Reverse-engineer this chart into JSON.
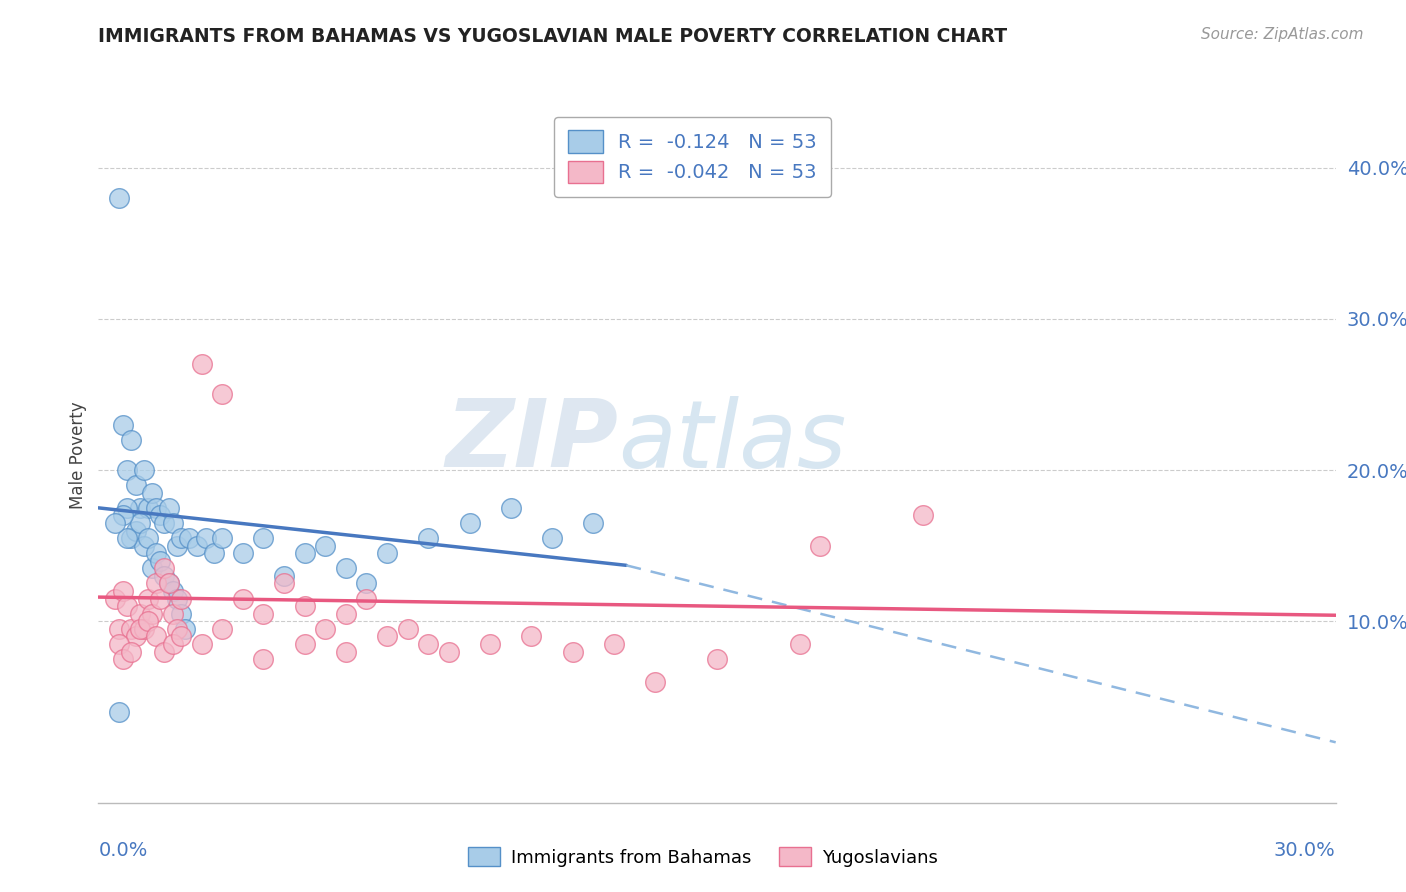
{
  "title": "IMMIGRANTS FROM BAHAMAS VS YUGOSLAVIAN MALE POVERTY CORRELATION CHART",
  "source": "Source: ZipAtlas.com",
  "ylabel": "Male Poverty",
  "y_ticks": [
    0.1,
    0.2,
    0.3,
    0.4
  ],
  "y_tick_labels": [
    "10.0%",
    "20.0%",
    "30.0%",
    "40.0%"
  ],
  "xlim": [
    0.0,
    0.3
  ],
  "ylim": [
    -0.02,
    0.44
  ],
  "legend_r1": "R =  -0.124   N = 53",
  "legend_r2": "R =  -0.042   N = 53",
  "legend_label1": "Immigrants from Bahamas",
  "legend_label2": "Yugoslavians",
  "color_blue": "#a8cce8",
  "color_pink": "#f4b8c8",
  "color_blue_dark": "#5590c8",
  "color_pink_dark": "#e87090",
  "color_blue_line": "#4878c0",
  "color_pink_line": "#e85880",
  "color_dashed": "#90b8e0",
  "watermark_zip": "ZIP",
  "watermark_atlas": "atlas",
  "blue_scatter_x": [
    0.005,
    0.006,
    0.007,
    0.008,
    0.009,
    0.01,
    0.011,
    0.012,
    0.013,
    0.014,
    0.015,
    0.016,
    0.017,
    0.018,
    0.019,
    0.02,
    0.022,
    0.024,
    0.026,
    0.028,
    0.03,
    0.035,
    0.04,
    0.045,
    0.05,
    0.055,
    0.06,
    0.065,
    0.07,
    0.08,
    0.09,
    0.1,
    0.11,
    0.12,
    0.007,
    0.008,
    0.009,
    0.01,
    0.011,
    0.012,
    0.013,
    0.014,
    0.015,
    0.016,
    0.017,
    0.018,
    0.019,
    0.02,
    0.021,
    0.006,
    0.007,
    0.005,
    0.004
  ],
  "blue_scatter_y": [
    0.38,
    0.23,
    0.2,
    0.22,
    0.19,
    0.175,
    0.2,
    0.175,
    0.185,
    0.175,
    0.17,
    0.165,
    0.175,
    0.165,
    0.15,
    0.155,
    0.155,
    0.15,
    0.155,
    0.145,
    0.155,
    0.145,
    0.155,
    0.13,
    0.145,
    0.15,
    0.135,
    0.125,
    0.145,
    0.155,
    0.165,
    0.175,
    0.155,
    0.165,
    0.175,
    0.155,
    0.16,
    0.165,
    0.15,
    0.155,
    0.135,
    0.145,
    0.14,
    0.13,
    0.125,
    0.12,
    0.115,
    0.105,
    0.095,
    0.17,
    0.155,
    0.04,
    0.165
  ],
  "pink_scatter_x": [
    0.004,
    0.005,
    0.006,
    0.007,
    0.008,
    0.009,
    0.01,
    0.011,
    0.012,
    0.013,
    0.014,
    0.015,
    0.016,
    0.017,
    0.018,
    0.019,
    0.02,
    0.025,
    0.03,
    0.035,
    0.04,
    0.045,
    0.05,
    0.055,
    0.06,
    0.065,
    0.075,
    0.085,
    0.095,
    0.105,
    0.115,
    0.125,
    0.135,
    0.15,
    0.17,
    0.005,
    0.006,
    0.008,
    0.01,
    0.012,
    0.014,
    0.016,
    0.018,
    0.02,
    0.025,
    0.03,
    0.04,
    0.05,
    0.06,
    0.07,
    0.08,
    0.2,
    0.175
  ],
  "pink_scatter_y": [
    0.115,
    0.095,
    0.12,
    0.11,
    0.095,
    0.09,
    0.105,
    0.095,
    0.115,
    0.105,
    0.125,
    0.115,
    0.135,
    0.125,
    0.105,
    0.095,
    0.115,
    0.27,
    0.25,
    0.115,
    0.105,
    0.125,
    0.11,
    0.095,
    0.105,
    0.115,
    0.095,
    0.08,
    0.085,
    0.09,
    0.08,
    0.085,
    0.06,
    0.075,
    0.085,
    0.085,
    0.075,
    0.08,
    0.095,
    0.1,
    0.09,
    0.08,
    0.085,
    0.09,
    0.085,
    0.095,
    0.075,
    0.085,
    0.08,
    0.09,
    0.085,
    0.17,
    0.15
  ],
  "blue_line_x": [
    0.0,
    0.128
  ],
  "blue_line_y": [
    0.175,
    0.137
  ],
  "dashed_line_x": [
    0.128,
    0.3
  ],
  "dashed_line_y": [
    0.137,
    0.02
  ],
  "pink_line_x": [
    0.0,
    0.3
  ],
  "pink_line_y": [
    0.116,
    0.104
  ]
}
